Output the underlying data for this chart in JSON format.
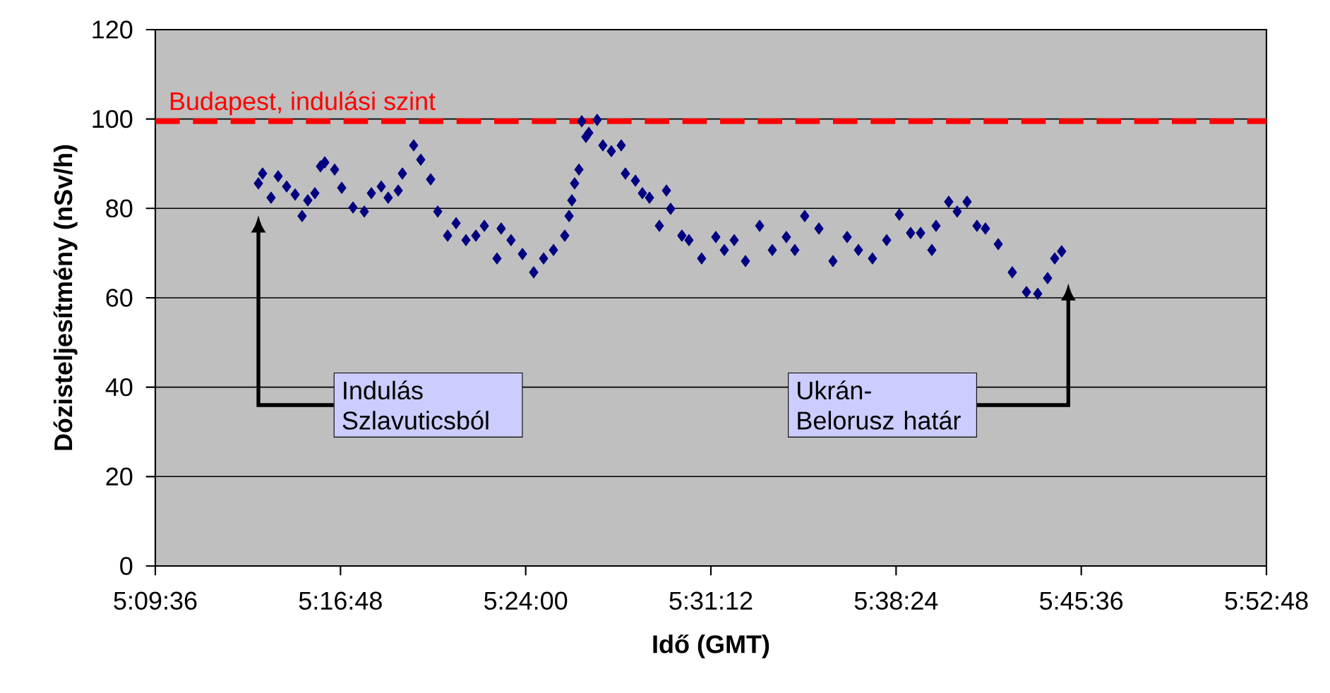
{
  "chart_data": {
    "type": "scatter",
    "xlabel": "Idő (GMT)",
    "ylabel": "Dózisteljesítmény (nSv/h)",
    "x": [
      5.2268,
      5.2295,
      5.235,
      5.2396,
      5.2451,
      5.2506,
      5.2551,
      5.2588,
      5.2634,
      5.267,
      5.2698,
      5.2762,
      5.2808,
      5.2881,
      5.2954,
      5.3,
      5.3064,
      5.3109,
      5.3174,
      5.3201,
      5.3274,
      5.332,
      5.3384,
      5.343,
      5.3494,
      5.3549,
      5.3613,
      5.3677,
      5.3732,
      5.3814,
      5.3841,
      5.3905,
      5.3979,
      5.4052,
      5.4116,
      5.418,
      5.4253,
      5.4281,
      5.4299,
      5.4317,
      5.4345,
      5.4363,
      5.439,
      5.4409,
      5.4463,
      5.45,
      5.4555,
      5.4619,
      5.4646,
      5.4711,
      5.4756,
      5.4802,
      5.4866,
      5.4912,
      5.4939,
      5.5012,
      5.5058,
      5.514,
      5.5232,
      5.5287,
      5.5351,
      5.5424,
      5.5516,
      5.5598,
      5.5689,
      5.5744,
      5.5808,
      5.59,
      5.5991,
      5.6083,
      5.6156,
      5.6247,
      5.6339,
      5.6421,
      5.6494,
      5.6559,
      5.6632,
      5.6659,
      5.6741,
      5.6796,
      5.686,
      5.6924,
      5.6979,
      5.7062,
      5.7153,
      5.7245,
      5.7318,
      5.7382,
      5.7428,
      5.7473
    ],
    "values": [
      85.6,
      87.8,
      82.4,
      87.2,
      84.9,
      83.1,
      78.3,
      81.8,
      83.4,
      89.4,
      90.3,
      88.7,
      84.6,
      80.2,
      79.3,
      83.4,
      84.9,
      82.4,
      84.0,
      87.8,
      94.1,
      90.9,
      86.5,
      79.3,
      73.9,
      76.7,
      72.9,
      73.9,
      76.1,
      68.8,
      75.5,
      72.9,
      69.8,
      65.7,
      68.8,
      70.7,
      73.9,
      78.3,
      81.8,
      85.6,
      88.7,
      99.5,
      96.0,
      96.9,
      99.8,
      94.1,
      92.8,
      94.1,
      87.8,
      86.2,
      83.4,
      82.4,
      76.1,
      84.0,
      79.9,
      73.9,
      72.9,
      68.8,
      73.6,
      70.7,
      72.9,
      68.2,
      76.1,
      70.7,
      73.6,
      70.7,
      78.3,
      75.5,
      68.2,
      73.6,
      70.7,
      68.8,
      72.9,
      78.6,
      74.5,
      74.5,
      70.7,
      76.1,
      81.5,
      79.3,
      81.5,
      76.1,
      75.5,
      72.0,
      65.7,
      61.3,
      60.9,
      64.4,
      68.8,
      70.4
    ],
    "color": "#000080",
    "marker": "diamond",
    "xlim": [
      5.16,
      5.88
    ],
    "xticks": [
      {
        "value": 5.16,
        "label": "5:09:36"
      },
      {
        "value": 5.28,
        "label": "5:16:48"
      },
      {
        "value": 5.4,
        "label": "5:24:00"
      },
      {
        "value": 5.52,
        "label": "5:31:12"
      },
      {
        "value": 5.64,
        "label": "5:38:24"
      },
      {
        "value": 5.76,
        "label": "5:45:36"
      },
      {
        "value": 5.88,
        "label": "5:52:48"
      }
    ],
    "ylim": [
      0,
      120
    ],
    "yticks": [
      0,
      20,
      40,
      60,
      80,
      100,
      120
    ],
    "grid": "y",
    "ref_lines": [
      {
        "axis": "y",
        "value": 99.5,
        "label": "Budapest, indulási szint",
        "color": "#ff0000",
        "line_style": "dashed"
      }
    ],
    "annotations": [
      "Indulás Szlavuticsból",
      "Ukrán-Belorusz határ"
    ]
  }
}
